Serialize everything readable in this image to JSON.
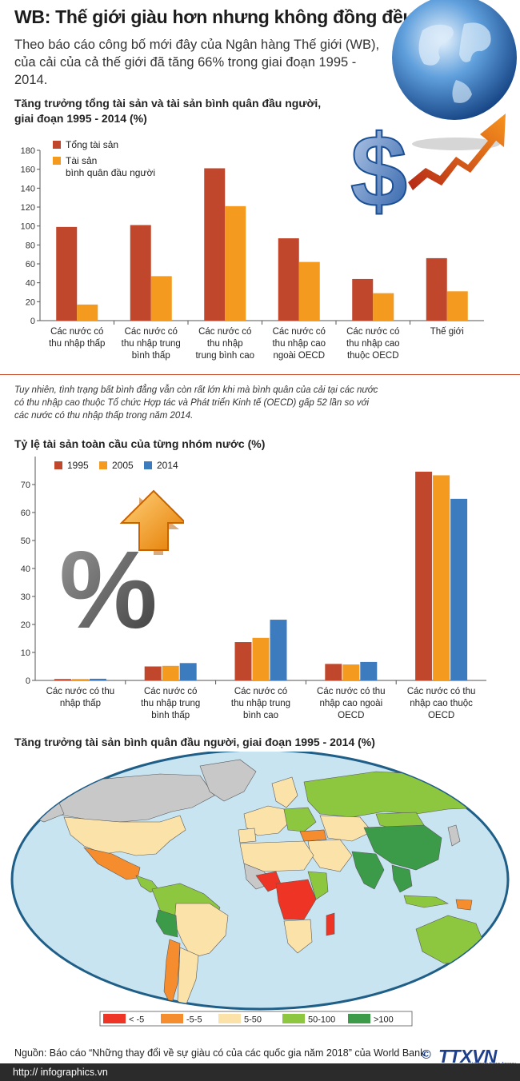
{
  "header": {
    "title": "WB: Thế giới giàu hơn nhưng không đồng đều",
    "intro": "Theo báo cáo công bố mới đây của Ngân hàng Thế giới (WB), của cải của cả thế giới đã tăng 66% trong giai đoạn 1995 - 2014."
  },
  "chart_data": [
    {
      "type": "bar",
      "title": "Tăng trưởng tổng tài sản và tài sản bình quân đầu người, giai đoạn 1995 - 2014 (%)",
      "categories": [
        [
          "Các nước có",
          "thu nhập thấp"
        ],
        [
          "Các nước có",
          "thu nhập trung",
          "bình thấp"
        ],
        [
          "Các nước có",
          "thu nhập",
          "trung bình cao"
        ],
        [
          "Các nước có",
          "thu nhập cao",
          "ngoài OECD"
        ],
        [
          "Các nước có",
          "thu nhập cao",
          "thuộc OECD"
        ],
        [
          "Thế giới"
        ]
      ],
      "series": [
        {
          "name": "Tổng tài sản",
          "color": "#c0472c",
          "values": [
            99,
            101,
            161,
            87,
            44,
            66
          ]
        },
        {
          "name": "Tài sản bình quân đầu người",
          "legend_lines": [
            "Tài sản",
            "bình quân đầu người"
          ],
          "color": "#f39a1f",
          "values": [
            17,
            47,
            121,
            62,
            29,
            31
          ]
        }
      ],
      "ylim": [
        0,
        180
      ],
      "yticks": [
        0,
        20,
        40,
        60,
        80,
        100,
        120,
        140,
        160,
        180
      ],
      "legend": "top-left"
    },
    {
      "type": "bar",
      "title": "Tỷ lệ tài sản toàn cầu của từng nhóm nước (%)",
      "categories": [
        [
          "Các nước có thu",
          "nhập thấp"
        ],
        [
          "Các nước có",
          "thu nhập trung",
          "bình thấp"
        ],
        [
          "Các nước có",
          "thu nhập trung",
          "bình cao"
        ],
        [
          "Các nước có thu",
          "nhập cao ngoài",
          "OECD"
        ],
        [
          "Các nước có thu",
          "nhập cao thuộc",
          "OECD"
        ]
      ],
      "series": [
        {
          "name": "1995",
          "color": "#c0472c",
          "values": [
            0.5,
            5,
            13.7,
            5.9,
            74.6
          ]
        },
        {
          "name": "2005",
          "color": "#f39a1f",
          "values": [
            0.5,
            5.2,
            15.2,
            5.7,
            73.3
          ]
        },
        {
          "name": "2014",
          "color": "#3d7bbf",
          "values": [
            0.6,
            6.2,
            21.7,
            6.6,
            64.9
          ]
        }
      ],
      "ylim": [
        0,
        80
      ],
      "yticks": [
        0,
        10,
        20,
        30,
        40,
        50,
        60,
        70
      ],
      "legend": "top-left"
    }
  ],
  "note": "Tuy nhiên, tình trạng bất bình đẳng vẫn còn rất lớn khi mà bình quân của cải tại các nước có thu nhập cao thuộc Tổ chức Hợp tác và Phát triển Kinh tế (OECD) gấp 52 lần so với các nước có thu nhập thấp trong năm 2014.",
  "map": {
    "title": "Tăng trưởng tài sản bình quân đầu người, giai đoạn 1995 - 2014 (%)",
    "legend": [
      {
        "label": "< -5",
        "color": "#ee3424"
      },
      {
        "label": "-5-5",
        "color": "#f58c2e"
      },
      {
        "label": "5-50",
        "color": "#fbe2a8"
      },
      {
        "label": "50-100",
        "color": "#8dc63f"
      },
      {
        "label": ">100",
        "color": "#3b9b48"
      }
    ],
    "colors": {
      "ocean": "#c8e4f1",
      "nodata": "#c8c8c8",
      "border": "#1f5e87"
    }
  },
  "footer": {
    "source": "Nguồn: Báo cáo “Những thay đổi về sự giàu có của các quốc gia năm 2018” của World Bank",
    "url": "http:// infographics.vn",
    "copyright": "©",
    "logo": "TTXVN",
    "logo_sub": "Vietnam News Agency"
  },
  "icons": [
    "globe-icon",
    "dollar-icon",
    "growth-arrow-icon",
    "up-arrow-icon",
    "percent-icon"
  ]
}
